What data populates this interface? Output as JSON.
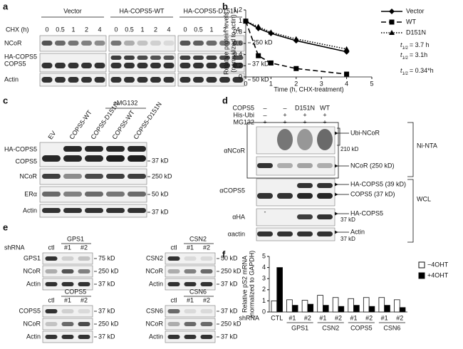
{
  "panel_labels": [
    "a",
    "b",
    "c",
    "d",
    "e",
    "f"
  ],
  "panel_a": {
    "groups": [
      "Vector",
      "HA-COPS5-WT",
      "HA-COPS5-D151N"
    ],
    "chx_label": "CHX (h)",
    "chx": [
      "0",
      "0.5",
      "1",
      "2",
      "4"
    ],
    "rows": [
      "NCoR",
      "HA-COPS5",
      "COPS5",
      "Actin"
    ],
    "markers": [
      "250 kD",
      "37 kD",
      "50 kD"
    ]
  },
  "panel_c": {
    "treatment": "+MG132",
    "lanes": [
      "EV",
      "COPS5-WT",
      "COPS5-D151N",
      "COPS5-WT",
      "COPS5-D151N"
    ],
    "rows": [
      "HA-COPS5",
      "COPS5",
      "NCoR",
      "ERα",
      "Actin"
    ],
    "markers": [
      "37 kD",
      "250 kD",
      "50 kD",
      "37 kD"
    ]
  },
  "panel_d": {
    "header_labels": [
      "COPS5",
      "His-Ubi",
      "MG132"
    ],
    "header_values": [
      [
        "–",
        "–",
        "D151N",
        "WT"
      ],
      [
        "–",
        "+",
        "+",
        "+"
      ],
      [
        "+",
        "+",
        "+",
        "+"
      ]
    ],
    "left_labels": [
      "αNCoR",
      "αCOPS5",
      "αHA",
      "αactin"
    ],
    "right_labels": [
      "Ubi-NCoR",
      "210 kD",
      "NCoR (250 kD)",
      "HA-COPS5 (39 kD)",
      "COPS5 (37 kD)",
      "HA-COPS5",
      "37 kD",
      "Actin",
      "37 kD"
    ],
    "lane_mark": "-",
    "brackets": [
      "Ni-NTA",
      "WCL"
    ]
  },
  "panel_e": {
    "shrna": "shRNA",
    "subpanels": [
      {
        "title": "GPS1",
        "lanes": [
          "ctl",
          "#1",
          "#2"
        ],
        "rows": [
          "GPS1",
          "NCoR",
          "Actin"
        ],
        "markers": [
          "75 kD",
          "250 kD",
          "37 kD"
        ]
      },
      {
        "title": "CSN2",
        "lanes": [
          "ctl",
          "#1",
          "#2"
        ],
        "rows": [
          "CSN2",
          "NCoR",
          "Actin"
        ],
        "markers": [
          "50 kD",
          "250 kD",
          "37 kD"
        ]
      },
      {
        "title": "COPS5",
        "lanes": [
          "ctl",
          "#1",
          "#2"
        ],
        "rows": [
          "COPS5",
          "NCoR",
          "Actin"
        ],
        "markers": [
          "37 kD",
          "250 kD",
          "37 kD"
        ]
      },
      {
        "title": "CSN6",
        "lanes": [
          "ctl",
          "#1",
          "#2"
        ],
        "rows": [
          "CSN6",
          "NCoR",
          "Actin"
        ],
        "markers": [
          "37 kD",
          "250 kD",
          "37 kD"
        ]
      }
    ]
  },
  "chart_data": [
    {
      "type": "line",
      "xlabel": "Time (h, CHX-treatment)",
      "ylabel": [
        "Relative protein levels",
        "(normalized to actin)"
      ],
      "x": [
        0,
        0.5,
        1,
        2,
        4
      ],
      "xlim": [
        0,
        5
      ],
      "xticks": [
        0,
        1,
        2,
        3,
        4,
        5
      ],
      "ylim": [
        0,
        1.2
      ],
      "yticks": [
        0,
        0.2,
        0.4,
        0.6,
        0.8,
        1,
        1.2
      ],
      "legend": "upper right",
      "series": [
        {
          "name": "Vector",
          "color": "#000000",
          "line_style": "solid",
          "marker": "diamond",
          "values": [
            1,
            0.87,
            0.78,
            0.65,
            0.45
          ]
        },
        {
          "name": "WT",
          "color": "#000000",
          "line_style": "dashed",
          "marker": "square",
          "values": [
            1,
            0.38,
            0.25,
            0.15,
            0.05
          ]
        },
        {
          "name": "D151N",
          "color": "#000000",
          "line_style": "dotted",
          "marker": "triangle",
          "values": [
            1,
            0.9,
            0.8,
            0.68,
            0.5
          ]
        }
      ],
      "annotations": [
        {
          "symbol": "t",
          "sub": "1/2",
          "text": "= 3.7 h"
        },
        {
          "symbol": "t",
          "sub": "1/2",
          "text": "= 3.1h"
        },
        {
          "symbol": "t",
          "sub": "1/2",
          "text": "= 0.34*h"
        }
      ]
    },
    {
      "type": "bar",
      "ylabel": [
        "Relative pS2 mRNA",
        "(normalized to GAPDH)"
      ],
      "xlabel": "shRNA",
      "categories": [
        "CTL",
        "#1",
        "#2",
        "#1",
        "#2",
        "#1",
        "#2",
        "#1",
        "#2"
      ],
      "group_labels": [
        "GPS1",
        "CSN2",
        "COPS5",
        "CSN6"
      ],
      "ylim": [
        0,
        5
      ],
      "yticks": [
        0,
        1,
        2,
        3,
        4,
        5
      ],
      "legend": "upper right",
      "series": [
        {
          "name": "−4OHT",
          "color": "#ffffff",
          "values": [
            1,
            1.1,
            1.05,
            1.5,
            1.3,
            1.2,
            1.3,
            1.3,
            1.1
          ]
        },
        {
          "name": "+4OHT",
          "color": "#000000",
          "values": [
            4,
            0.6,
            0.7,
            0.6,
            0.5,
            0.6,
            0.5,
            0.6,
            0.4
          ]
        }
      ]
    }
  ]
}
